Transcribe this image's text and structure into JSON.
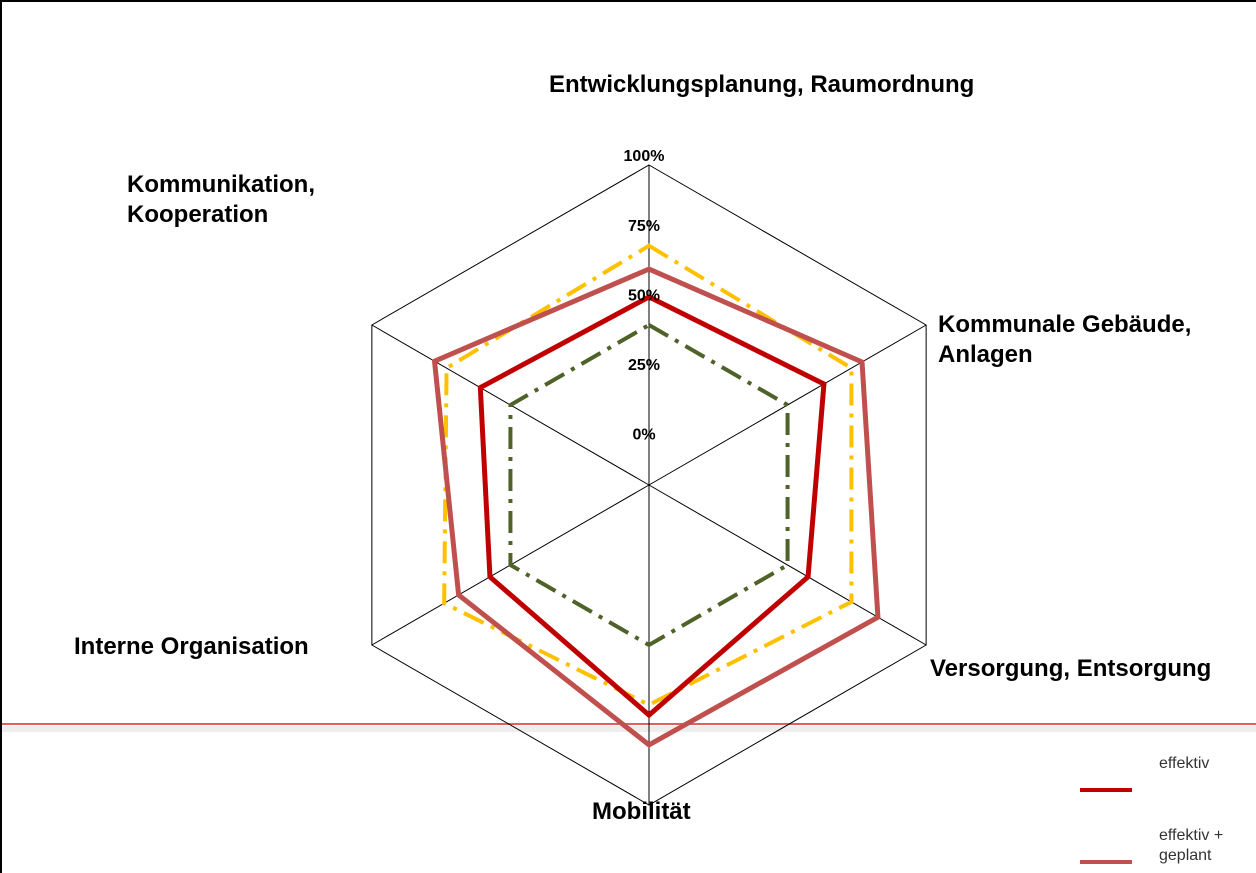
{
  "chart_data": {
    "type": "radar",
    "categories": [
      "Entwicklungsplanung, Raumordnung",
      "Kommunale Gebäude, Anlagen",
      "Versorgung, Entsorgung",
      "Mobilität",
      "Interne Organisation",
      "Kommunikation, Kooperation"
    ],
    "ylim": [
      -15,
      100
    ],
    "yticks": [
      {
        "value": 0,
        "label": "0%"
      },
      {
        "value": 25,
        "label": "25%"
      },
      {
        "value": 50,
        "label": "50%"
      },
      {
        "value": 75,
        "label": "75%"
      },
      {
        "value": 100,
        "label": "100%"
      }
    ],
    "series": [
      {
        "color": "#ffc000",
        "values": [
          71,
          69,
          69,
          64,
          70,
          69
        ]
      },
      {
        "color": "#4f6228",
        "values": [
          42.5,
          42.5,
          42.5,
          42.5,
          42.5,
          42.5
        ]
      },
      {
        "name": "effektiv + geplant",
        "color": "#c0504d",
        "values": [
          62.6,
          73.4,
          80,
          78.4,
          64,
          74
        ]
      },
      {
        "name": "effektiv",
        "color": "#c00000",
        "values": [
          52.6,
          57.6,
          51,
          67.7,
          51,
          55
        ]
      }
    ]
  }
}
